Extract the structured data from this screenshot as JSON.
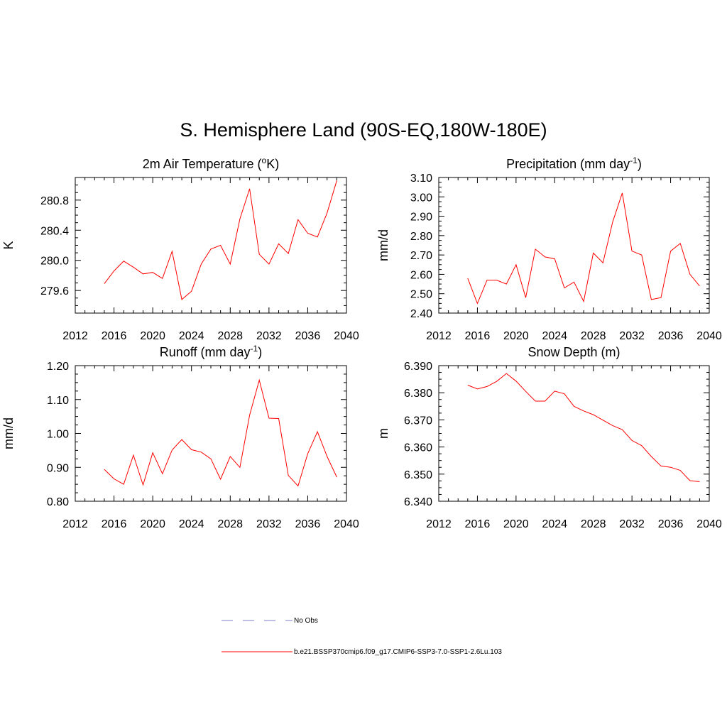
{
  "main_title": "S. Hemisphere Land (90S-EQ,180W-180E)",
  "legend": {
    "items": [
      {
        "label": "No Obs",
        "style": "dashed",
        "color": "#aaaadd"
      },
      {
        "label": "b.e21.BSSP370cmip6.f09_g17.CMIP6-SSP3-7.0-SSP1-2.6Lu.103",
        "style": "solid",
        "color": "#ff0000"
      }
    ]
  },
  "line_color": "#ff0000",
  "chart_data": [
    {
      "type": "line",
      "title": "2m Air Temperature (",
      "title_sup": "o",
      "title_post": "K)",
      "title_sup_mode": "before",
      "ylabel": "K",
      "xlim": [
        2012,
        2040
      ],
      "ylim": [
        279.3,
        281.1
      ],
      "xticks": [
        "2012",
        "2016",
        "2020",
        "2024",
        "2028",
        "2032",
        "2036",
        "2040"
      ],
      "yticks": [
        "279.6",
        "280.0",
        "280.4",
        "280.8"
      ],
      "ytick_values": [
        279.6,
        280.0,
        280.4,
        280.8
      ],
      "x": [
        2015,
        2016,
        2017,
        2018,
        2019,
        2020,
        2021,
        2022,
        2023,
        2024,
        2025,
        2026,
        2027,
        2028,
        2029,
        2030,
        2031,
        2032,
        2033,
        2034,
        2035,
        2036,
        2037,
        2038,
        2039
      ],
      "series": [
        {
          "values": [
            279.69,
            279.86,
            279.99,
            279.91,
            279.82,
            279.84,
            279.76,
            280.12,
            279.48,
            279.59,
            279.95,
            280.15,
            280.2,
            279.95,
            280.55,
            280.95,
            280.08,
            279.95,
            280.22,
            280.09,
            280.54,
            280.36,
            280.31,
            280.63,
            281.06
          ]
        }
      ]
    },
    {
      "type": "line",
      "title": "Precipitation (mm day",
      "title_sup": "-1",
      "title_post": ")",
      "title_sup_mode": "before",
      "ylabel": "mm/d",
      "xlim": [
        2012,
        2040
      ],
      "ylim": [
        2.4,
        3.1
      ],
      "xticks": [
        "2012",
        "2016",
        "2020",
        "2024",
        "2028",
        "2032",
        "2036",
        "2040"
      ],
      "yticks": [
        "2.40",
        "2.50",
        "2.60",
        "2.70",
        "2.80",
        "2.90",
        "3.00",
        "3.10"
      ],
      "ytick_values": [
        2.4,
        2.5,
        2.6,
        2.7,
        2.8,
        2.9,
        3.0,
        3.1
      ],
      "x": [
        2015,
        2016,
        2017,
        2018,
        2019,
        2020,
        2021,
        2022,
        2023,
        2024,
        2025,
        2026,
        2027,
        2028,
        2029,
        2030,
        2031,
        2032,
        2033,
        2034,
        2035,
        2036,
        2037,
        2038,
        2039
      ],
      "series": [
        {
          "values": [
            2.58,
            2.45,
            2.57,
            2.57,
            2.55,
            2.65,
            2.48,
            2.73,
            2.69,
            2.68,
            2.53,
            2.56,
            2.46,
            2.71,
            2.66,
            2.87,
            3.02,
            2.72,
            2.7,
            2.47,
            2.48,
            2.72,
            2.76,
            2.6,
            2.54
          ]
        }
      ]
    },
    {
      "type": "line",
      "title": "Runoff (mm day",
      "title_sup": "-1",
      "title_post": ")",
      "title_sup_mode": "before",
      "ylabel": "mm/d",
      "xlim": [
        2012,
        2040
      ],
      "ylim": [
        0.8,
        1.2
      ],
      "xticks": [
        "2012",
        "2016",
        "2020",
        "2024",
        "2028",
        "2032",
        "2036",
        "2040"
      ],
      "yticks": [
        "0.80",
        "0.90",
        "1.00",
        "1.10",
        "1.20"
      ],
      "ytick_values": [
        0.8,
        0.9,
        1.0,
        1.1,
        1.2
      ],
      "x": [
        2015,
        2016,
        2017,
        2018,
        2019,
        2020,
        2021,
        2022,
        2023,
        2024,
        2025,
        2026,
        2027,
        2028,
        2029,
        2030,
        2031,
        2032,
        2033,
        2034,
        2035,
        2036,
        2037,
        2038,
        2039
      ],
      "series": [
        {
          "values": [
            0.894,
            0.866,
            0.85,
            0.936,
            0.848,
            0.943,
            0.881,
            0.951,
            0.982,
            0.952,
            0.945,
            0.925,
            0.865,
            0.932,
            0.9,
            1.054,
            1.157,
            1.045,
            1.044,
            0.876,
            0.845,
            0.94,
            1.005,
            0.932,
            0.871
          ]
        }
      ]
    },
    {
      "type": "line",
      "title": "Snow Depth (m)",
      "title_sup": "",
      "title_post": "",
      "title_sup_mode": "none",
      "ylabel": "m",
      "xlim": [
        2012,
        2040
      ],
      "ylim": [
        6.34,
        6.39
      ],
      "xticks": [
        "2012",
        "2016",
        "2020",
        "2024",
        "2028",
        "2032",
        "2036",
        "2040"
      ],
      "yticks": [
        "6.340",
        "6.350",
        "6.360",
        "6.370",
        "6.380",
        "6.390"
      ],
      "ytick_values": [
        6.34,
        6.35,
        6.36,
        6.37,
        6.38,
        6.39
      ],
      "x": [
        2015,
        2016,
        2017,
        2018,
        2019,
        2020,
        2021,
        2022,
        2023,
        2024,
        2025,
        2026,
        2027,
        2028,
        2029,
        2030,
        2031,
        2032,
        2033,
        2034,
        2035,
        2036,
        2037,
        2038,
        2039
      ],
      "series": [
        {
          "values": [
            6.3828,
            6.3814,
            6.3823,
            6.3842,
            6.3871,
            6.3843,
            6.3805,
            6.3769,
            6.3769,
            6.3806,
            6.3796,
            6.375,
            6.3733,
            6.3719,
            6.3699,
            6.3679,
            6.3664,
            6.3624,
            6.3605,
            6.3565,
            6.353,
            6.3525,
            6.3514,
            6.3476,
            6.3472
          ]
        }
      ]
    }
  ]
}
